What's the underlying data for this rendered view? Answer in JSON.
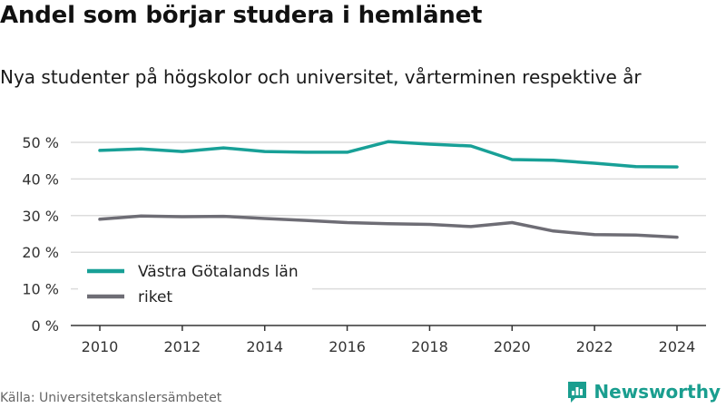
{
  "title": "Andel som börjar studera i hemlänet",
  "subtitle": "Nya studenter på högskolor och universitet, vårterminen respektive år",
  "source": "Källa: Universitetskanslersämbetet",
  "brand": {
    "name": "Newsworthy",
    "icon": "newsworthy-logo-icon",
    "color": "#1a9e8f"
  },
  "chart_data": {
    "type": "line",
    "x": [
      2010,
      2011,
      2012,
      2013,
      2014,
      2015,
      2016,
      2017,
      2018,
      2019,
      2020,
      2021,
      2022,
      2023,
      2024
    ],
    "series": [
      {
        "name": "Västra Götalands län",
        "color": "#18a097",
        "values": [
          47.8,
          48.2,
          47.5,
          48.5,
          47.5,
          47.3,
          47.3,
          50.2,
          49.5,
          49.0,
          45.3,
          45.1,
          44.3,
          43.4,
          43.3
        ]
      },
      {
        "name": "riket",
        "color": "#6e6d75",
        "values": [
          29.0,
          29.9,
          29.7,
          29.8,
          29.2,
          28.7,
          28.1,
          27.8,
          27.6,
          27.0,
          28.1,
          25.8,
          24.8,
          24.7,
          24.1
        ]
      }
    ],
    "xticks": [
      2010,
      2012,
      2014,
      2016,
      2018,
      2020,
      2022,
      2024
    ],
    "yticks": [
      0,
      10,
      20,
      30,
      40,
      50
    ],
    "ytick_suffix": " %",
    "ylim": [
      0,
      50
    ],
    "grid": "horizontal",
    "legend_placement": "bottom-left"
  }
}
